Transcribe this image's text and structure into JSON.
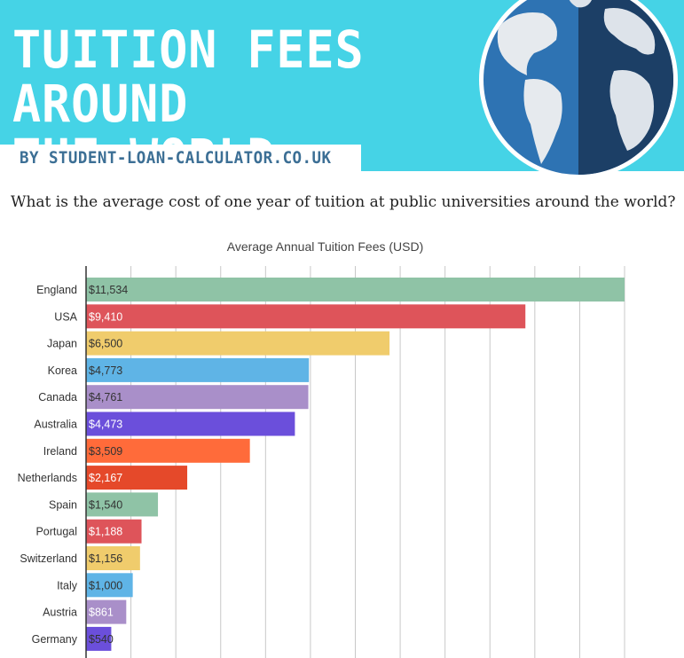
{
  "header": {
    "title": "TUITION FEES AROUND\nTHE WORLD",
    "byline": "BY STUDENT-LOAN-CALCULATOR.CO.UK",
    "background_color": "#45d3e6",
    "globe_icon": "globe-icon"
  },
  "question": "What is the average cost of one year of tuition at public universities around the world?",
  "chart_data": {
    "type": "bar",
    "orientation": "horizontal",
    "title": "Average Annual Tuition Fees (USD)",
    "categories": [
      "England",
      "USA",
      "Japan",
      "Korea",
      "Canada",
      "Australia",
      "Ireland",
      "Netherlands",
      "Spain",
      "Portugal",
      "Switzerland",
      "Italy",
      "Austria",
      "Germany"
    ],
    "values": [
      11534,
      9410,
      6500,
      4773,
      4761,
      4473,
      3509,
      2167,
      1540,
      1188,
      1156,
      1000,
      861,
      540
    ],
    "labels": [
      "$11,534",
      "$9,410",
      "$6,500",
      "$4,773",
      "$4,761",
      "$4,473",
      "$3,509",
      "$2,167",
      "$1,540",
      "$1,188",
      "$1,156",
      "$1,000",
      "$861",
      "$540"
    ],
    "colors": [
      "#8fc3a6",
      "#de545a",
      "#f0cc6c",
      "#5fb4e6",
      "#a98fc9",
      "#6b4fdb",
      "#ff6b3a",
      "#e5492a",
      "#8fc3a6",
      "#de545a",
      "#f0cc6c",
      "#5fb4e6",
      "#a98fc9",
      "#6b4fdb"
    ],
    "label_colors": [
      "#333333",
      "#ffffff",
      "#333333",
      "#333333",
      "#333333",
      "#ffffff",
      "#333333",
      "#ffffff",
      "#333333",
      "#ffffff",
      "#333333",
      "#333333",
      "#ffffff",
      "#333333"
    ],
    "xlim": [
      0,
      11534
    ],
    "grid": true,
    "gridline_count": 12
  }
}
